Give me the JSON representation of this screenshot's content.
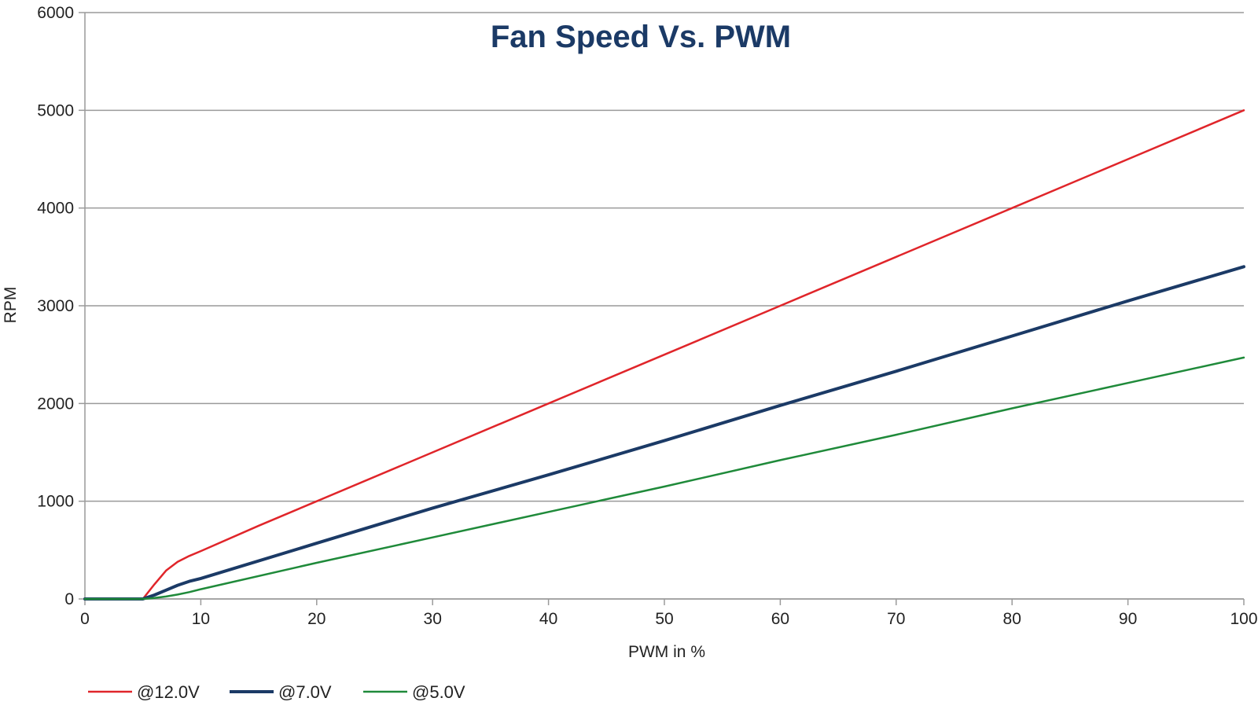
{
  "chart_data": {
    "type": "line",
    "title": "Fan Speed Vs. PWM",
    "title_color": "#1b3a66",
    "xlabel": "PWM in %",
    "ylabel": "RPM",
    "xlim": [
      0,
      100
    ],
    "ylim": [
      0,
      6000
    ],
    "xticks": [
      0,
      10,
      20,
      30,
      40,
      50,
      60,
      70,
      80,
      90,
      100
    ],
    "yticks": [
      0,
      1000,
      2000,
      3000,
      4000,
      5000,
      6000
    ],
    "grid": true,
    "legend_position": "bottom-left",
    "series": [
      {
        "name": "@12.0V",
        "color": "#e0252a",
        "line_width": 2.5,
        "x": [
          0,
          3,
          5,
          6,
          7,
          8,
          9,
          10,
          15,
          20,
          30,
          40,
          50,
          60,
          70,
          80,
          90,
          100
        ],
        "y": [
          0,
          0,
          0,
          150,
          290,
          380,
          440,
          490,
          750,
          1000,
          1500,
          2000,
          2500,
          3000,
          3500,
          4000,
          4500,
          5000
        ]
      },
      {
        "name": "@7.0V",
        "color": "#1b3a66",
        "line_width": 4,
        "x": [
          0,
          3,
          5,
          6,
          7,
          8,
          9,
          10,
          20,
          30,
          40,
          50,
          60,
          70,
          80,
          90,
          100
        ],
        "y": [
          0,
          0,
          0,
          40,
          90,
          140,
          180,
          210,
          570,
          930,
          1270,
          1620,
          1980,
          2330,
          2690,
          3050,
          3400
        ]
      },
      {
        "name": "@5.0V",
        "color": "#1f8a3a",
        "line_width": 2.5,
        "x": [
          0,
          3,
          5,
          6,
          7,
          8,
          9,
          10,
          20,
          30,
          40,
          50,
          60,
          70,
          80,
          90,
          100
        ],
        "y": [
          0,
          0,
          0,
          10,
          25,
          45,
          70,
          100,
          370,
          630,
          890,
          1150,
          1420,
          1680,
          1950,
          2210,
          2470
        ]
      }
    ]
  }
}
